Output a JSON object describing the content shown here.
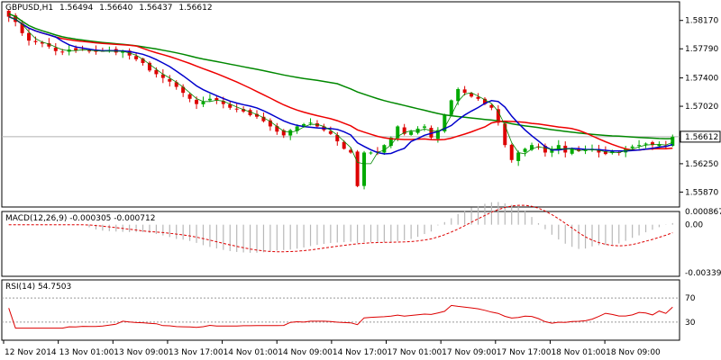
{
  "header": {
    "symbol": "GBPUSD,H1",
    "ohlc": [
      "1.56494",
      "1.56640",
      "1.56437",
      "1.56612"
    ]
  },
  "macd": {
    "label": "MACD(12,26,9) -0.000305 -0.000712"
  },
  "rsi": {
    "label": "RSI(14) 54.7503"
  },
  "chart_data": {
    "type": "candlestick",
    "price_axis": {
      "ticks": [
        "1.58170",
        "1.57790",
        "1.57400",
        "1.57020",
        "1.56612",
        "1.56250",
        "1.55870"
      ],
      "range": [
        1.5567,
        1.5842
      ],
      "current": 1.56612
    },
    "x_labels": [
      "12 Nov 2014",
      "13 Nov 01:00",
      "13 Nov 09:00",
      "13 Nov 17:00",
      "14 Nov 01:00",
      "14 Nov 09:00",
      "14 Nov 17:00",
      "17 Nov 01:00",
      "17 Nov 09:00",
      "17 Nov 17:00",
      "18 Nov 01:00",
      "18 Nov 09:00"
    ],
    "colors": {
      "up": "#00aa00",
      "down": "#dd0000",
      "ma_fast": "#0000cc",
      "ma_mid": "#ee0000",
      "ma_slow": "#008800",
      "ma_thin": "#008800"
    },
    "candles_close": [
      1.5822,
      1.5815,
      1.58,
      1.579,
      1.5788,
      1.5786,
      1.5782,
      1.5776,
      1.5775,
      1.5778,
      1.5777,
      1.5778,
      1.5776,
      1.5775,
      1.5776,
      1.5777,
      1.5774,
      1.5776,
      1.577,
      1.5765,
      1.576,
      1.575,
      1.5745,
      1.574,
      1.5735,
      1.5728,
      1.572,
      1.5712,
      1.5705,
      1.5708,
      1.5712,
      1.571,
      1.5705,
      1.57,
      1.5698,
      1.5695,
      1.569,
      1.5688,
      1.5682,
      1.5675,
      1.5668,
      1.5663,
      1.567,
      1.5675,
      1.5678,
      1.568,
      1.5675,
      1.567,
      1.5665,
      1.5655,
      1.5645,
      1.564,
      1.5595,
      1.564,
      1.564,
      1.564,
      1.565,
      1.566,
      1.5675,
      1.5665,
      1.5668,
      1.5672,
      1.5675,
      1.566,
      1.567,
      1.569,
      1.571,
      1.5725,
      1.572,
      1.5715,
      1.5712,
      1.5705,
      1.57,
      1.568,
      1.565,
      1.563,
      1.564,
      1.5645,
      1.565,
      1.5648,
      1.564,
      1.5645,
      1.565,
      1.564,
      1.5645,
      1.5642,
      1.5644,
      1.5645,
      1.564,
      1.5638,
      1.5642,
      1.564,
      1.5645,
      1.5648,
      1.565,
      1.5652,
      1.565,
      1.5651,
      1.5649,
      1.5661
    ],
    "macd_signal_range": [
      -0.00339,
      0.000867
    ],
    "macd_ticks": [
      "0.000867",
      "0.00",
      "-0.00339"
    ],
    "rsi_ticks": [
      "70",
      "30"
    ],
    "rsi_last": 54.7503
  }
}
